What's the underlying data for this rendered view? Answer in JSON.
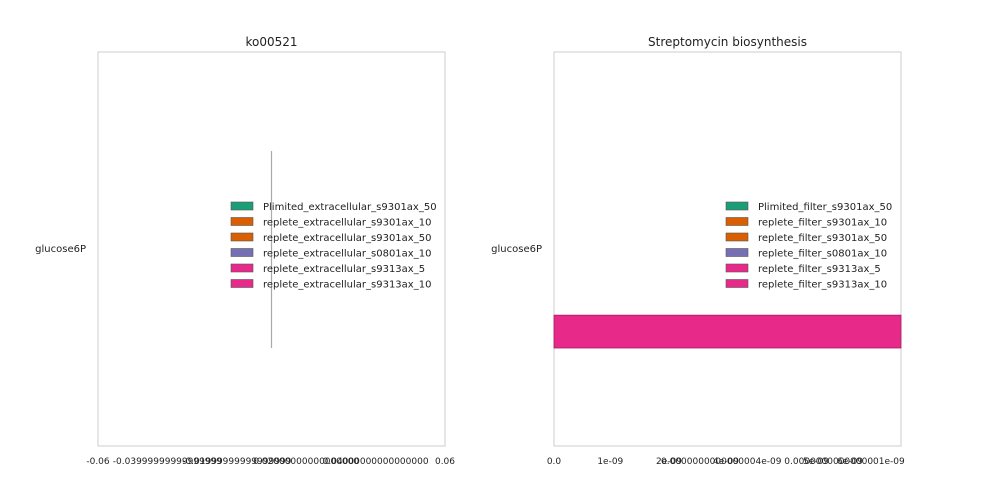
{
  "chart_data": [
    {
      "type": "bar",
      "orientation": "horizontal",
      "title": "ko00521",
      "categories": [
        "glucose6P"
      ],
      "xlim": [
        -0.06,
        0.06
      ],
      "xtick_labels": [
        "-0.06",
        "-0.03999999999999999",
        "-0.01999999999999999",
        "0.02000000000000000",
        "0.04000000000000000",
        "0.06"
      ],
      "grid": false,
      "legend_position": "center-right",
      "series": [
        {
          "name": "Plimited_extracellular_s9301ax_50",
          "color": "#1b9e77",
          "values": [
            0
          ]
        },
        {
          "name": "replete_extracellular_s9301ax_10",
          "color": "#d95f02",
          "values": [
            0
          ]
        },
        {
          "name": "replete_extracellular_s9301ax_50",
          "color": "#d95f02",
          "values": [
            0
          ]
        },
        {
          "name": "replete_extracellular_s0801ax_10",
          "color": "#7570b3",
          "values": [
            0
          ]
        },
        {
          "name": "replete_extracellular_s9313ax_5",
          "color": "#e7298a",
          "values": [
            0
          ]
        },
        {
          "name": "replete_extracellular_s9313ax_10",
          "color": "#e7298a",
          "values": [
            0
          ]
        }
      ]
    },
    {
      "type": "bar",
      "orientation": "horizontal",
      "title": "Streptomycin biosynthesis",
      "categories": [
        "glucose6P"
      ],
      "xlim": [
        0,
        6.6e-09
      ],
      "xtick_labels": [
        "0.0",
        "1e-09",
        "2e-09",
        "4e-09",
        "5e-09",
        "6e-09"
      ],
      "xtick_overlay_text": "0.0000000000000004e-09       0.0000000000000001e-09",
      "grid": false,
      "legend_position": "center-right",
      "series": [
        {
          "name": "Plimited_filter_s9301ax_50",
          "color": "#1b9e77",
          "values": [
            0
          ]
        },
        {
          "name": "replete_filter_s9301ax_10",
          "color": "#d95f02",
          "values": [
            0
          ]
        },
        {
          "name": "replete_filter_s9301ax_50",
          "color": "#d95f02",
          "values": [
            0
          ]
        },
        {
          "name": "replete_filter_s0801ax_10",
          "color": "#7570b3",
          "values": [
            0
          ]
        },
        {
          "name": "replete_filter_s9313ax_5",
          "color": "#e7298a",
          "values": [
            0
          ]
        },
        {
          "name": "replete_filter_s9313ax_10",
          "color": "#e7298a",
          "values": [
            6.6e-09
          ]
        }
      ]
    }
  ]
}
